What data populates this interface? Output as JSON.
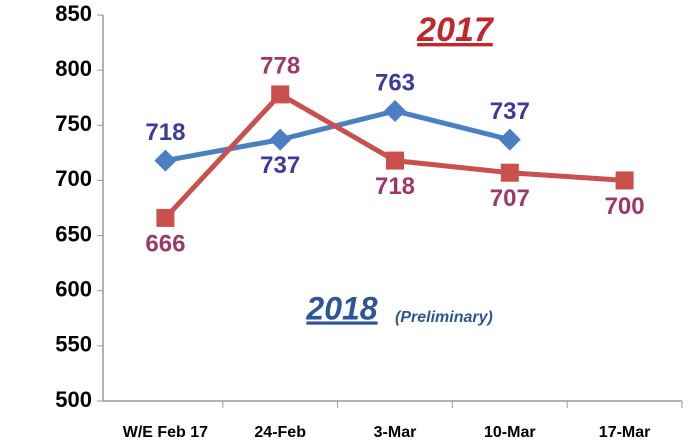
{
  "chart_data": {
    "type": "line",
    "categories": [
      "W/E Feb 17",
      "24-Feb",
      "3-Mar",
      "10-Mar",
      "17-Mar"
    ],
    "series": [
      {
        "name": "2018",
        "color": "#4a7fc1",
        "label_color": "#3b3b9a",
        "marker": "diamond",
        "values": [
          718,
          737,
          763,
          737,
          null
        ]
      },
      {
        "name": "2017",
        "color": "#c9504d",
        "label_color": "#9b3a6a",
        "marker": "square",
        "values": [
          666,
          778,
          718,
          707,
          700
        ]
      }
    ],
    "annotation": "(Preliminary)",
    "ylim": [
      500,
      850
    ],
    "yticks": [
      500,
      550,
      600,
      650,
      700,
      750,
      800,
      850
    ],
    "grid": false
  }
}
